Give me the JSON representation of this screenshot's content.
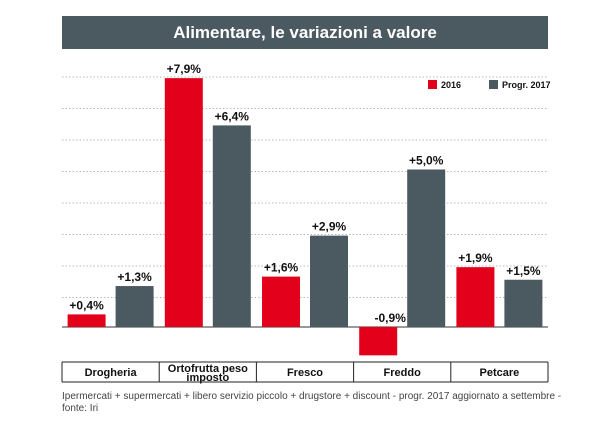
{
  "chart_data": {
    "type": "bar",
    "title": "Alimentare, le variazioni a valore",
    "categories": [
      "Drogheria",
      "Ortofrutta peso imposto",
      "Fresco",
      "Freddo",
      "Petcare"
    ],
    "series": [
      {
        "name": "2016",
        "color": "#e2001a",
        "values": [
          0.4,
          7.9,
          1.6,
          -0.9,
          1.9
        ],
        "labels": [
          "+0,4%",
          "+7,9%",
          "+1,6%",
          "-0,9%",
          "+1,9%"
        ]
      },
      {
        "name": "Progr. 2017",
        "color": "#4b5961",
        "values": [
          1.3,
          6.4,
          2.9,
          5.0,
          1.5
        ],
        "labels": [
          "+1,3%",
          "+6,4%",
          "+2,9%",
          "+5,0%",
          "+1,5%"
        ]
      }
    ],
    "ylim": [
      -1,
      9
    ],
    "legend": "top-right",
    "grid": true,
    "xlabel": "",
    "ylabel": ""
  },
  "footnote": "Ipermercati + supermercati + libero servizio piccolo + drugstore + discount - progr. 2017 aggiornato a settembre - fonte: Iri"
}
